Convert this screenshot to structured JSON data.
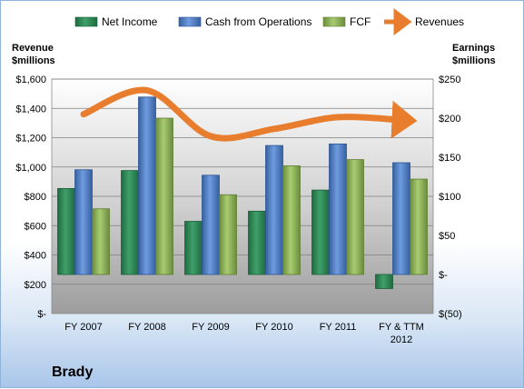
{
  "chart_data": {
    "type": "bar",
    "company": "Brady",
    "left_axis_title_line1": "Revenue",
    "left_axis_title_line2": "$millions",
    "right_axis_title_line1": "Earnings",
    "right_axis_title_line2": "$millions",
    "categories": [
      [
        "FY 2007"
      ],
      [
        "FY 2008"
      ],
      [
        "FY 2009"
      ],
      [
        "FY 2010"
      ],
      [
        "FY 2011"
      ],
      [
        "FY & TTM",
        "2012"
      ]
    ],
    "left_axis": {
      "min": 0,
      "max": 1600,
      "step": 200,
      "tick_labels": [
        "$-",
        "$200",
        "$400",
        "$600",
        "$800",
        "$1,000",
        "$1,200",
        "$1,400",
        "$1,600"
      ]
    },
    "right_axis": {
      "min": -50,
      "max": 250,
      "step": 50,
      "tick_labels": [
        "$(50)",
        "$-",
        "$50",
        "$100",
        "$150",
        "$200",
        "$250"
      ]
    },
    "series": [
      {
        "name": "Net Income",
        "axis": "right",
        "kind": "bar",
        "color": "#2e8b57",
        "values": [
          110,
          133,
          68,
          81,
          108,
          -18
        ]
      },
      {
        "name": "Cash from Operations",
        "axis": "right",
        "kind": "bar",
        "color": "#4f7fc4",
        "values": [
          134,
          227,
          127,
          165,
          167,
          143
        ]
      },
      {
        "name": "FCF",
        "axis": "right",
        "kind": "bar",
        "color": "#8fb559",
        "values": [
          84,
          200,
          102,
          139,
          147,
          122
        ]
      },
      {
        "name": "Revenues",
        "axis": "left",
        "kind": "line",
        "color": "#e87d2e",
        "values": [
          1360,
          1523,
          1210,
          1260,
          1340,
          1320
        ]
      }
    ],
    "grid": true,
    "legend_position": "top"
  }
}
